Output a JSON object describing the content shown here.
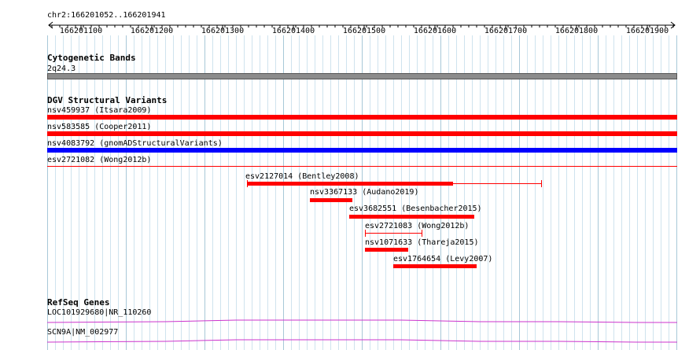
{
  "location": "chr2:166201052..166201941",
  "ruler_ticks": [
    "166201100",
    "166201200",
    "166201300",
    "166201400",
    "166201500",
    "166201600",
    "166201700",
    "166201800",
    "166201900"
  ],
  "tracks": {
    "cytoband": {
      "title": "Cytogenetic Bands",
      "band": "2q24.3"
    },
    "dgv": {
      "title": "DGV Structural Variants",
      "full_width": [
        {
          "label": "nsv459937 (Itsara2009)",
          "color": "#ff0000"
        },
        {
          "label": "nsv583585 (Cooper2011)",
          "color": "#ff0000"
        },
        {
          "label": "nsv4083792 (gnomADStructuralVariants)",
          "color": "#0000ff"
        },
        {
          "label": "esv2721082 (Wong2012b)",
          "color": "#ff0000"
        }
      ],
      "features": [
        {
          "label": "esv2127014 (Bentley2008)",
          "color": "#ff0000"
        },
        {
          "label": "nsv3367133 (Audano2019)",
          "color": "#ff0000"
        },
        {
          "label": "esv3682551 (Besenbacher2015)",
          "color": "#ff0000"
        },
        {
          "label": "esv2721083 (Wong2012b)",
          "color": "#ff0000"
        },
        {
          "label": "nsv1071633 (Thareja2015)",
          "color": "#ff0000"
        },
        {
          "label": "esv1764654 (Levy2007)",
          "color": "#ff0000"
        }
      ]
    },
    "refseq": {
      "title": "RefSeq Genes",
      "genes": [
        {
          "label": "LOC101929680|NR_110260",
          "color": "#cc33cc"
        },
        {
          "label": "SCN9A|NM_002977",
          "color": "#cc33cc"
        }
      ]
    }
  }
}
